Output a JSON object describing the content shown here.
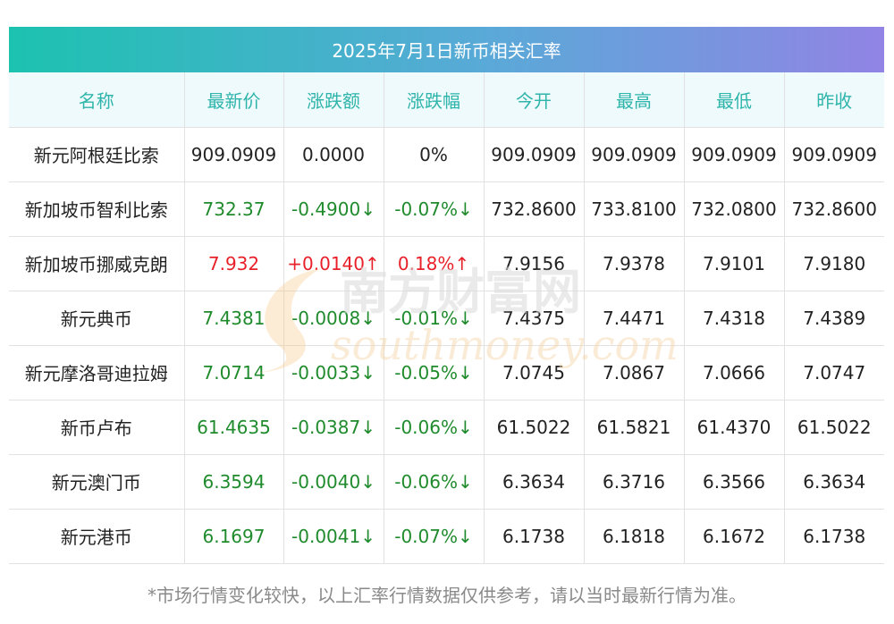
{
  "title": "2025年7月1日新币相关汇率",
  "headers": [
    "名称",
    "最新价",
    "涨跌额",
    "涨跌幅",
    "今开",
    "最高",
    "最低",
    "昨收"
  ],
  "rows": [
    {
      "name": "新元阿根廷比索",
      "latest": "909.0909",
      "change": "0.0000",
      "pct": "0%",
      "open": "909.0909",
      "high": "909.0909",
      "low": "909.0909",
      "prev": "909.0909",
      "trend": "flat"
    },
    {
      "name": "新加坡币智利比索",
      "latest": "732.37",
      "change": "-0.4900↓",
      "pct": "-0.07%↓",
      "open": "732.8600",
      "high": "733.8100",
      "low": "732.0800",
      "prev": "732.8600",
      "trend": "down"
    },
    {
      "name": "新加坡币挪威克朗",
      "latest": "7.932",
      "change": "+0.0140↑",
      "pct": "0.18%↑",
      "open": "7.9156",
      "high": "7.9378",
      "low": "7.9101",
      "prev": "7.9180",
      "trend": "up"
    },
    {
      "name": "新元典币",
      "latest": "7.4381",
      "change": "-0.0008↓",
      "pct": "-0.01%↓",
      "open": "7.4375",
      "high": "7.4471",
      "low": "7.4318",
      "prev": "7.4389",
      "trend": "down"
    },
    {
      "name": "新元摩洛哥迪拉姆",
      "latest": "7.0714",
      "change": "-0.0033↓",
      "pct": "-0.05%↓",
      "open": "7.0745",
      "high": "7.0867",
      "low": "7.0666",
      "prev": "7.0747",
      "trend": "down"
    },
    {
      "name": "新币卢布",
      "latest": "61.4635",
      "change": "-0.0387↓",
      "pct": "-0.06%↓",
      "open": "61.5022",
      "high": "61.5821",
      "low": "61.4370",
      "prev": "61.5022",
      "trend": "down"
    },
    {
      "name": "新元澳门币",
      "latest": "6.3594",
      "change": "-0.0040↓",
      "pct": "-0.06%↓",
      "open": "6.3634",
      "high": "6.3716",
      "low": "6.3566",
      "prev": "6.3634",
      "trend": "down"
    },
    {
      "name": "新元港币",
      "latest": "6.1697",
      "change": "-0.0041↓",
      "pct": "-0.07%↓",
      "open": "6.1738",
      "high": "6.1818",
      "low": "6.1672",
      "prev": "6.1738",
      "trend": "down"
    }
  ],
  "watermark": {
    "cn": "南方财富网",
    "en": "southmoney.com"
  },
  "note": "*市场行情变化较快，以上汇率行情数据仅供参考，请以当时最新行情为准。",
  "colors": {
    "up": "#e8202a",
    "down": "#1f8b2c",
    "header_text": "#2eb4ab",
    "header_bg": "#eefafb",
    "title_gradient_start": "#1cc2b0",
    "title_gradient_end": "#9184e4"
  }
}
